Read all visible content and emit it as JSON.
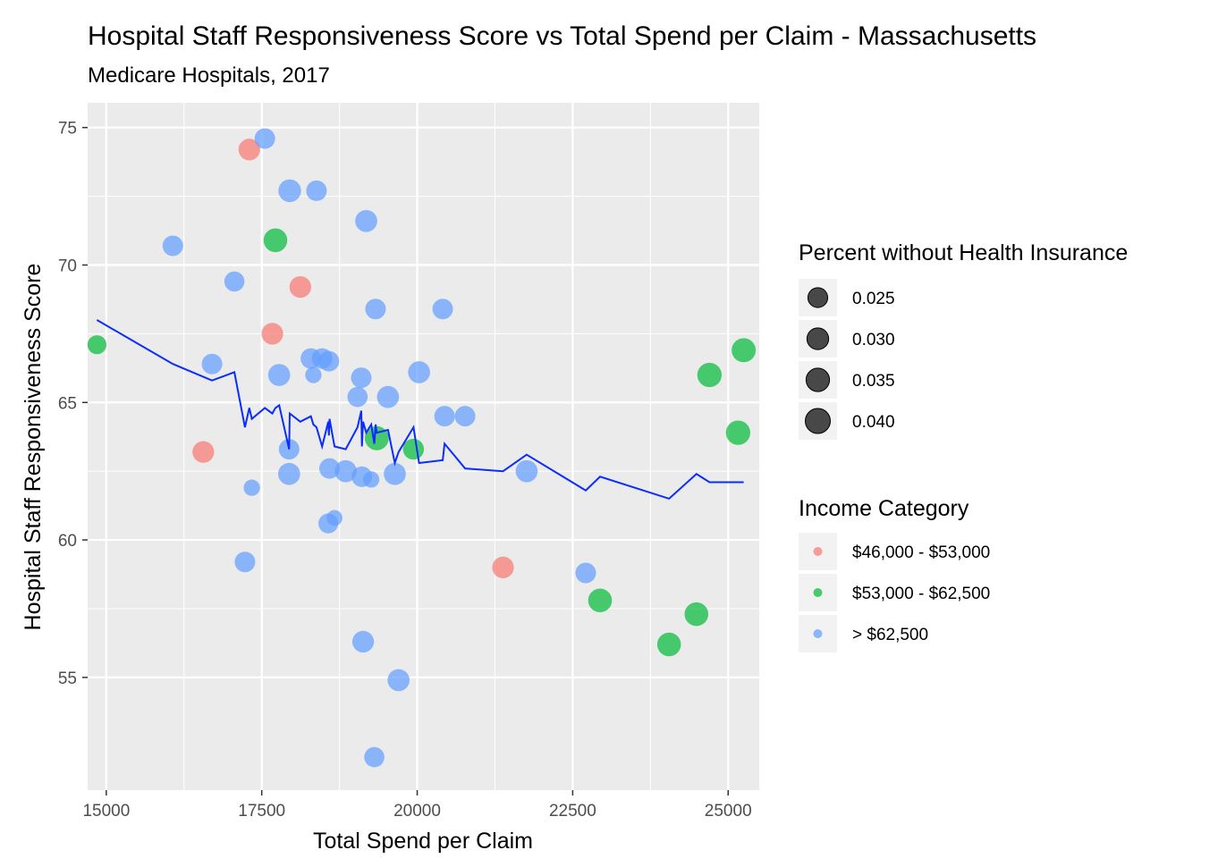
{
  "chart_data": {
    "type": "scatter",
    "title": "Hospital Staff Responsiveness Score vs Total Spend per Claim - Massachusetts",
    "subtitle": "Medicare Hospitals, 2017",
    "xlabel": "Total Spend per Claim",
    "ylabel": "Hospital Staff Responsiveness Score",
    "xlim": [
      14700,
      25500
    ],
    "ylim": [
      50.9,
      75.9
    ],
    "x_ticks": [
      15000,
      17500,
      20000,
      22500,
      25000
    ],
    "y_ticks": [
      55,
      60,
      65,
      70,
      75
    ],
    "x_tick_labels": [
      "15000",
      "17500",
      "20000",
      "22500",
      "25000"
    ],
    "y_tick_labels": [
      "55",
      "60",
      "65",
      "70",
      "75"
    ],
    "grid": true,
    "legend_position": "right",
    "colors": {
      "panel_background": "#ebebeb",
      "grid_line": "#ffffff",
      "trend_line": "#0a2cff",
      "$46,000 - $53,000": "#f8766d",
      "$53,000 - $62,500": "#00ba38",
      "> $62,500": "#619cff"
    },
    "size_legend": {
      "title": "Percent without Health Insurance",
      "values": [
        0.025,
        0.03,
        0.035,
        0.04
      ],
      "labels": [
        "0.025",
        "0.030",
        "0.035",
        "0.040"
      ]
    },
    "color_legend": {
      "title": "Income Category",
      "categories": [
        "$46,000 - $53,000",
        "$53,000 - $62,500",
        "> $62,500"
      ]
    },
    "points": [
      {
        "x": 17550,
        "y": 74.6,
        "size": 0.027,
        "category": "> $62,500"
      },
      {
        "x": 17300,
        "y": 74.2,
        "size": 0.03,
        "category": "$46,000 - $53,000"
      },
      {
        "x": 17950,
        "y": 72.7,
        "size": 0.033,
        "category": "> $62,500"
      },
      {
        "x": 18380,
        "y": 72.7,
        "size": 0.027,
        "category": "> $62,500"
      },
      {
        "x": 19180,
        "y": 71.6,
        "size": 0.031,
        "category": "> $62,500"
      },
      {
        "x": 17720,
        "y": 70.9,
        "size": 0.036,
        "category": "$53,000 - $62,500"
      },
      {
        "x": 16070,
        "y": 70.7,
        "size": 0.027,
        "category": "> $62,500"
      },
      {
        "x": 17060,
        "y": 69.4,
        "size": 0.026,
        "category": "> $62,500"
      },
      {
        "x": 18120,
        "y": 69.2,
        "size": 0.03,
        "category": "$46,000 - $53,000"
      },
      {
        "x": 19330,
        "y": 68.4,
        "size": 0.027,
        "category": "> $62,500"
      },
      {
        "x": 20410,
        "y": 68.4,
        "size": 0.027,
        "category": "> $62,500"
      },
      {
        "x": 17670,
        "y": 67.5,
        "size": 0.03,
        "category": "$46,000 - $53,000"
      },
      {
        "x": 14850,
        "y": 67.1,
        "size": 0.023,
        "category": "$53,000 - $62,500"
      },
      {
        "x": 25250,
        "y": 66.9,
        "size": 0.037,
        "category": "$53,000 - $62,500"
      },
      {
        "x": 18290,
        "y": 66.6,
        "size": 0.027,
        "category": "> $62,500"
      },
      {
        "x": 18470,
        "y": 66.6,
        "size": 0.027,
        "category": "> $62,500"
      },
      {
        "x": 18580,
        "y": 66.5,
        "size": 0.027,
        "category": "> $62,500"
      },
      {
        "x": 16700,
        "y": 66.4,
        "size": 0.027,
        "category": "> $62,500"
      },
      {
        "x": 20030,
        "y": 66.1,
        "size": 0.031,
        "category": "> $62,500"
      },
      {
        "x": 24700,
        "y": 66.0,
        "size": 0.038,
        "category": "$53,000 - $62,500"
      },
      {
        "x": 17780,
        "y": 66.0,
        "size": 0.031,
        "category": "> $62,500"
      },
      {
        "x": 18330,
        "y": 66.0,
        "size": 0.017,
        "category": "> $62,500"
      },
      {
        "x": 19100,
        "y": 65.9,
        "size": 0.027,
        "category": "> $62,500"
      },
      {
        "x": 19530,
        "y": 65.2,
        "size": 0.031,
        "category": "> $62,500"
      },
      {
        "x": 19040,
        "y": 65.2,
        "size": 0.026,
        "category": "> $62,500"
      },
      {
        "x": 20440,
        "y": 64.5,
        "size": 0.027,
        "category": "> $62,500"
      },
      {
        "x": 20770,
        "y": 64.5,
        "size": 0.027,
        "category": "> $62,500"
      },
      {
        "x": 25160,
        "y": 63.9,
        "size": 0.038,
        "category": "$53,000 - $62,500"
      },
      {
        "x": 19350,
        "y": 63.7,
        "size": 0.037,
        "category": "$53,000 - $62,500"
      },
      {
        "x": 17940,
        "y": 63.3,
        "size": 0.027,
        "category": "> $62,500"
      },
      {
        "x": 19940,
        "y": 63.3,
        "size": 0.028,
        "category": "$53,000 - $62,500"
      },
      {
        "x": 16560,
        "y": 63.2,
        "size": 0.03,
        "category": "$46,000 - $53,000"
      },
      {
        "x": 18590,
        "y": 62.6,
        "size": 0.027,
        "category": "> $62,500"
      },
      {
        "x": 21760,
        "y": 62.5,
        "size": 0.031,
        "category": "> $62,500"
      },
      {
        "x": 18850,
        "y": 62.5,
        "size": 0.031,
        "category": "> $62,500"
      },
      {
        "x": 19640,
        "y": 62.4,
        "size": 0.031,
        "category": "> $62,500"
      },
      {
        "x": 17940,
        "y": 62.4,
        "size": 0.031,
        "category": "> $62,500"
      },
      {
        "x": 19110,
        "y": 62.3,
        "size": 0.027,
        "category": "> $62,500"
      },
      {
        "x": 19260,
        "y": 62.2,
        "size": 0.017,
        "category": "> $62,500"
      },
      {
        "x": 17340,
        "y": 61.9,
        "size": 0.017,
        "category": "> $62,500"
      },
      {
        "x": 18670,
        "y": 60.8,
        "size": 0.016,
        "category": "> $62,500"
      },
      {
        "x": 18570,
        "y": 60.6,
        "size": 0.025,
        "category": "> $62,500"
      },
      {
        "x": 17230,
        "y": 59.2,
        "size": 0.027,
        "category": "> $62,500"
      },
      {
        "x": 21380,
        "y": 59.0,
        "size": 0.03,
        "category": "$46,000 - $53,000"
      },
      {
        "x": 22710,
        "y": 58.8,
        "size": 0.027,
        "category": "> $62,500"
      },
      {
        "x": 22940,
        "y": 57.8,
        "size": 0.036,
        "category": "$53,000 - $62,500"
      },
      {
        "x": 24490,
        "y": 57.3,
        "size": 0.036,
        "category": "$53,000 - $62,500"
      },
      {
        "x": 24050,
        "y": 56.2,
        "size": 0.036,
        "category": "$53,000 - $62,500"
      },
      {
        "x": 19130,
        "y": 56.3,
        "size": 0.03,
        "category": "> $62,500"
      },
      {
        "x": 19700,
        "y": 54.9,
        "size": 0.031,
        "category": "> $62,500"
      },
      {
        "x": 19310,
        "y": 52.1,
        "size": 0.026,
        "category": "> $62,500"
      }
    ],
    "trend_line": {
      "x": [
        14850,
        16070,
        16700,
        17060,
        17230,
        17300,
        17340,
        17550,
        17670,
        17720,
        17780,
        17940,
        17950,
        18120,
        18290,
        18330,
        18380,
        18470,
        18570,
        18580,
        18590,
        18670,
        18850,
        19040,
        19100,
        19110,
        19130,
        19180,
        19260,
        19310,
        19330,
        19350,
        19530,
        19640,
        19700,
        19940,
        20030,
        20410,
        20440,
        20770,
        21380,
        21760,
        22710,
        22940,
        24050,
        24490,
        24700,
        25160,
        25250
      ],
      "y": [
        68.0,
        66.4,
        65.8,
        66.1,
        64.1,
        64.8,
        64.4,
        64.8,
        64.6,
        64.8,
        64.9,
        63.3,
        64.6,
        64.3,
        64.5,
        64.2,
        64.1,
        63.4,
        64.3,
        63.8,
        64.4,
        63.4,
        63.3,
        64.1,
        64.7,
        63.4,
        64.3,
        63.9,
        64.2,
        63.5,
        64.2,
        63.9,
        64.0,
        62.8,
        63.2,
        64.1,
        62.8,
        62.9,
        63.5,
        62.6,
        62.5,
        63.1,
        61.8,
        62.3,
        61.5,
        62.4,
        62.1,
        62.1,
        62.1
      ]
    }
  }
}
